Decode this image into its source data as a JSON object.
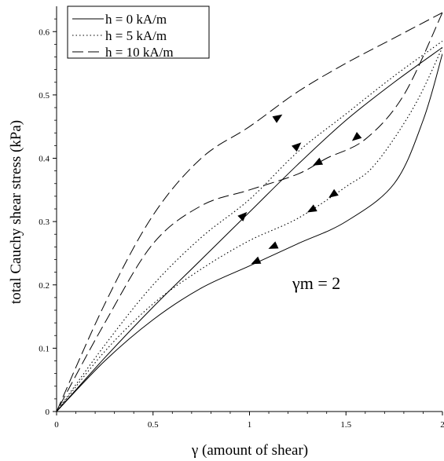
{
  "chart_data": {
    "type": "line",
    "xlabel": "γ (amount of shear)",
    "ylabel": "total Cauchy shear stress (kPa)",
    "xlim": [
      0,
      2
    ],
    "ylim": [
      0,
      0.64
    ],
    "x_ticks": [
      "0",
      "0.5",
      "1",
      "1.5",
      "2"
    ],
    "y_ticks": [
      "0",
      "0.1",
      "0.2",
      "0.3",
      "0.4",
      "0.5",
      "0.6"
    ],
    "grid": false,
    "legend_position": "top-left",
    "annotation": "γm = 2",
    "series": [
      {
        "name": "h = 0 kA/m",
        "style": "solid",
        "loading": [
          [
            0,
            0
          ],
          [
            0.25,
            0.085
          ],
          [
            0.5,
            0.165
          ],
          [
            0.75,
            0.24
          ],
          [
            1,
            0.315
          ],
          [
            1.25,
            0.39
          ],
          [
            1.5,
            0.46
          ],
          [
            1.75,
            0.52
          ],
          [
            2,
            0.575
          ]
        ],
        "unloading": [
          [
            2,
            0.565
          ],
          [
            1.9,
            0.46
          ],
          [
            1.75,
            0.36
          ],
          [
            1.5,
            0.3
          ],
          [
            1.25,
            0.265
          ],
          [
            1,
            0.23
          ],
          [
            0.75,
            0.195
          ],
          [
            0.5,
            0.145
          ],
          [
            0.25,
            0.08
          ],
          [
            0,
            0
          ]
        ]
      },
      {
        "name": "h = 5 kA/m",
        "style": "dotted",
        "loading": [
          [
            0,
            0
          ],
          [
            0.25,
            0.105
          ],
          [
            0.5,
            0.2
          ],
          [
            0.75,
            0.275
          ],
          [
            1,
            0.335
          ],
          [
            1.25,
            0.41
          ],
          [
            1.5,
            0.47
          ],
          [
            1.75,
            0.53
          ],
          [
            2,
            0.585
          ]
        ],
        "unloading": [
          [
            2,
            0.575
          ],
          [
            1.85,
            0.48
          ],
          [
            1.65,
            0.39
          ],
          [
            1.5,
            0.355
          ],
          [
            1.25,
            0.305
          ],
          [
            1,
            0.27
          ],
          [
            0.75,
            0.225
          ],
          [
            0.5,
            0.17
          ],
          [
            0.25,
            0.095
          ],
          [
            0,
            0
          ]
        ]
      },
      {
        "name": "h = 10 kA/m",
        "style": "dashed",
        "loading": [
          [
            0,
            0
          ],
          [
            0.25,
            0.17
          ],
          [
            0.5,
            0.31
          ],
          [
            0.75,
            0.4
          ],
          [
            1,
            0.45
          ],
          [
            1.25,
            0.505
          ],
          [
            1.5,
            0.55
          ],
          [
            1.75,
            0.59
          ],
          [
            2,
            0.63
          ]
        ],
        "unloading": [
          [
            2,
            0.63
          ],
          [
            1.8,
            0.5
          ],
          [
            1.6,
            0.43
          ],
          [
            1.4,
            0.4
          ],
          [
            1.25,
            0.375
          ],
          [
            1,
            0.35
          ],
          [
            0.75,
            0.325
          ],
          [
            0.5,
            0.265
          ],
          [
            0.25,
            0.14
          ],
          [
            0,
            0
          ]
        ]
      }
    ],
    "arrows": [
      {
        "series": 0,
        "x": 0.97,
        "y": 0.31,
        "dir": "up"
      },
      {
        "series": 0,
        "x": 1.03,
        "y": 0.236,
        "dir": "down"
      },
      {
        "series": 0,
        "x": 1.12,
        "y": 0.26,
        "dir": "down"
      },
      {
        "series": 1,
        "x": 1.25,
        "y": 0.42,
        "dir": "up"
      },
      {
        "series": 1,
        "x": 1.32,
        "y": 0.318,
        "dir": "down"
      },
      {
        "series": 1,
        "x": 1.43,
        "y": 0.342,
        "dir": "down"
      },
      {
        "series": 2,
        "x": 1.15,
        "y": 0.465,
        "dir": "up"
      },
      {
        "series": 2,
        "x": 1.35,
        "y": 0.392,
        "dir": "down"
      },
      {
        "series": 2,
        "x": 1.55,
        "y": 0.432,
        "dir": "down"
      }
    ]
  }
}
